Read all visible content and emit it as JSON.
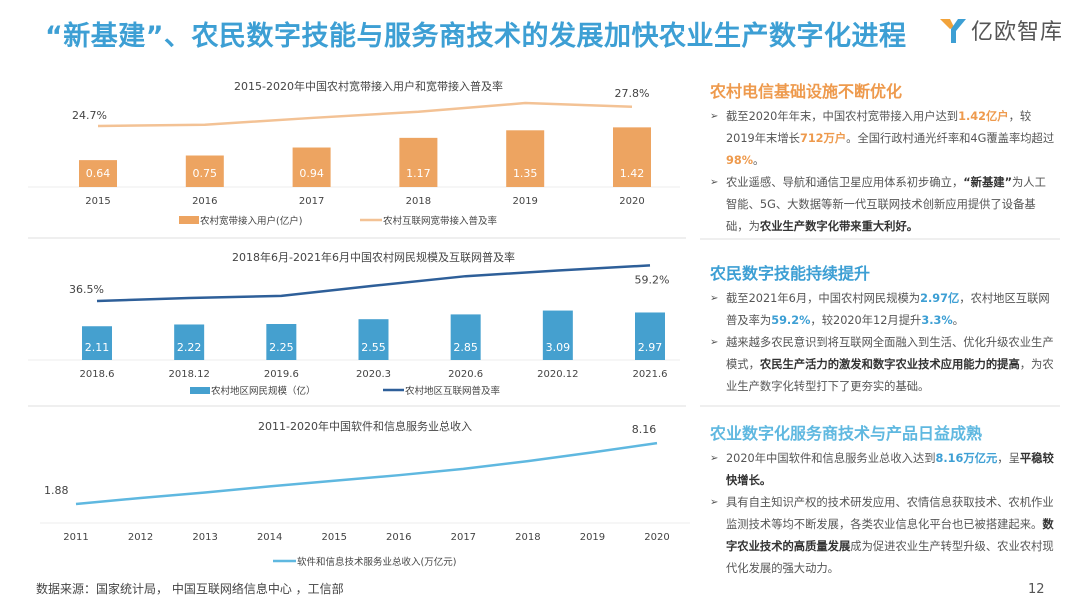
{
  "header": {
    "title": "“新基建”、农民数字技能与服务商技术的发展加快农业生产数字化进程",
    "logo_text": "亿欧智库"
  },
  "colors": {
    "orange": "#eda461",
    "orange_line": "#f3c295",
    "blue_bar": "#45a0cf",
    "navy_line": "#2e5f99",
    "light_blue_line": "#5fb8e0",
    "title_blue": "#3d9fd4"
  },
  "chart_data": [
    {
      "type": "bar+line",
      "title": "2015-2020年中国农村宽带接入用户和宽带接入普及率",
      "categories": [
        "2015",
        "2016",
        "2017",
        "2018",
        "2019",
        "2020"
      ],
      "series": [
        {
          "name": "农村宽带接入用户(亿户)",
          "type": "bar",
          "values": [
            0.64,
            0.75,
            0.94,
            1.17,
            1.35,
            1.42
          ]
        },
        {
          "name": "农村互联网宽带接入普及率",
          "type": "line",
          "values": [
            24.7,
            24.9,
            26.0,
            27.0,
            28.4,
            27.8
          ],
          "labels": [
            "24.7%",
            "",
            "",
            "",
            "",
            "27.8%"
          ]
        }
      ]
    },
    {
      "type": "bar+line",
      "title": "2018年6月-2021年6月中国农村网民规模及互联网普及率",
      "categories": [
        "2018.6",
        "2018.12",
        "2019.6",
        "2020.3",
        "2020.6",
        "2020.12",
        "2021.6"
      ],
      "series": [
        {
          "name": "农村地区网民规模（亿）",
          "type": "bar",
          "values": [
            2.11,
            2.22,
            2.25,
            2.55,
            2.85,
            3.09,
            2.97
          ]
        },
        {
          "name": "农村地区互联网普及率",
          "type": "line",
          "values": [
            36.5,
            38.4,
            39.8,
            46.2,
            52.3,
            55.9,
            59.2
          ],
          "labels": [
            "36.5%",
            "",
            "",
            "",
            "",
            "",
            "59.2%"
          ]
        }
      ]
    },
    {
      "type": "line",
      "title": "2011-2020年中国软件和信息服务业总收入",
      "categories": [
        "2011",
        "2012",
        "2013",
        "2014",
        "2015",
        "2016",
        "2017",
        "2018",
        "2019",
        "2020"
      ],
      "series": [
        {
          "name": "软件和信息技术服务业总收入(万亿元)",
          "type": "line",
          "values": [
            1.88,
            2.5,
            3.06,
            3.7,
            4.28,
            4.85,
            5.5,
            6.3,
            7.2,
            8.16
          ],
          "labels": [
            "1.88",
            "",
            "",
            "",
            "",
            "",
            "",
            "",
            "",
            "8.16"
          ]
        }
      ]
    }
  ],
  "side": {
    "section1": {
      "heading": "农村电信基础设施不断优化",
      "b1": [
        "截至2020年年末，中国农村宽带接入用户达到",
        "1.42亿户",
        "，较2019年末增长",
        "712万户",
        "。全国行政村通光纤率和4G覆盖率均超过",
        "98%",
        "。"
      ],
      "b2": [
        "农业遥感、导航和通信卫星应用体系初步确立，",
        "“新基建”",
        "为人工智能、5G、大数据等新一代互联网技术创新应用提供了设备基础，为",
        "农业生产数字化带来重大利好。"
      ]
    },
    "section2": {
      "heading": "农民数字技能持续提升",
      "b1": [
        "截至2021年6月，中国农村网民规模为",
        "2.97亿",
        "，农村地区互联网普及率为",
        "59.2%",
        "，较2020年12月提升",
        "3.3%",
        "。"
      ],
      "b2": [
        "越来越多农民意识到将互联网全面融入到生活、优化升级农业生产模式，",
        "农民生产活力的激发和数字农业技术应用能力的提高",
        "，为农业生产数字化转型打下了更夯实的基础。"
      ]
    },
    "section3": {
      "heading": "农业数字化服务商技术与产品日益成熟",
      "b1": [
        "2020年中国软件和信息服务业总收入达到",
        "8.16万亿元",
        "，呈",
        "平稳较快增长。"
      ],
      "b2": [
        "具有自主知识产权的技术研发应用、农情信息获取技术、农机作业监测技术等均不断发展，各类农业信息化平台也已被搭建起来。",
        "数字农业技术的高质量发展",
        "成为促进农业生产转型升级、农业农村现代化发展的强大动力。"
      ]
    }
  },
  "footer": {
    "source": "数据来源：国家统计局， 中国互联网络信息中心 ，工信部",
    "page_number": "12"
  }
}
